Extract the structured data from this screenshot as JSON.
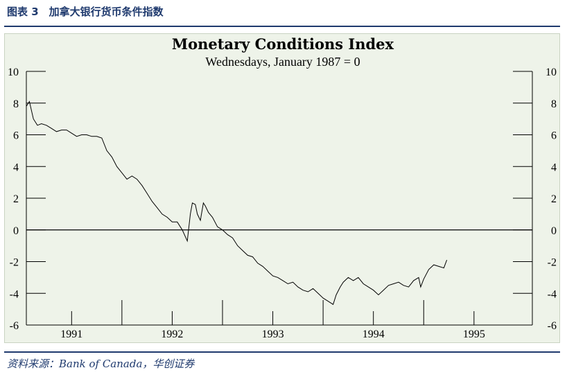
{
  "page": {
    "figure_title": "图表 3　加拿大银行货币条件指数",
    "source": "资料来源：Bank of Canada，华创证券"
  },
  "chart_data": {
    "type": "line",
    "title": "Monetary Conditions Index",
    "subtitle": "Wednesdays, January 1987 = 0",
    "xlim": [
      1990.55,
      1995.58
    ],
    "ylim": [
      -6,
      10
    ],
    "y_ticks": [
      -6,
      -4,
      -2,
      0,
      2,
      4,
      6,
      8,
      10
    ],
    "x_labels": [
      "1991",
      "1992",
      "1993",
      "1994",
      "1995"
    ],
    "x_label_positions": [
      1991,
      1992,
      1993,
      1994,
      1995
    ],
    "year_boundaries": [
      1991.5,
      1992.5,
      1993.5,
      1994.5
    ],
    "grid": false,
    "zero_line": true,
    "colors": {
      "line": "#000000",
      "panel": "#eef3e9",
      "accent": "#1f3a6e"
    },
    "series": [
      {
        "x": [
          1990.55,
          1990.58,
          1990.62,
          1990.66,
          1990.7,
          1990.75,
          1990.8,
          1990.85,
          1990.9,
          1990.95,
          1991.0,
          1991.05,
          1991.1,
          1991.15,
          1991.2,
          1991.25,
          1991.3,
          1991.35,
          1991.4,
          1991.45,
          1991.5,
          1991.55,
          1991.6,
          1991.65,
          1991.7,
          1991.75,
          1991.8,
          1991.85,
          1991.9,
          1991.95,
          1992.0,
          1992.05,
          1992.1,
          1992.15,
          1992.18,
          1992.2,
          1992.23,
          1992.25,
          1992.28,
          1992.31,
          1992.33,
          1992.36,
          1992.4,
          1992.45,
          1992.5,
          1992.55,
          1992.6,
          1992.65,
          1992.7,
          1992.75,
          1992.8,
          1992.85,
          1992.9,
          1992.95,
          1993.0,
          1993.05,
          1993.1,
          1993.15,
          1993.2,
          1993.25,
          1993.3,
          1993.35,
          1993.4,
          1993.45,
          1993.5,
          1993.55,
          1993.6,
          1993.63,
          1993.67,
          1993.7,
          1993.75,
          1993.8,
          1993.85,
          1993.9,
          1993.95,
          1994.0,
          1994.05,
          1994.1,
          1994.15,
          1994.2,
          1994.25,
          1994.3,
          1994.35,
          1994.4,
          1994.45,
          1994.47,
          1994.5,
          1994.55,
          1994.6,
          1994.65,
          1994.7,
          1994.73
        ],
        "y": [
          7.8,
          8.1,
          7.0,
          6.6,
          6.7,
          6.6,
          6.4,
          6.2,
          6.3,
          6.3,
          6.1,
          5.9,
          6.0,
          6.0,
          5.9,
          5.9,
          5.8,
          5.0,
          4.6,
          4.0,
          3.6,
          3.2,
          3.4,
          3.2,
          2.8,
          2.3,
          1.8,
          1.4,
          1.0,
          0.8,
          0.5,
          0.5,
          0.0,
          -0.7,
          1.0,
          1.7,
          1.6,
          1.0,
          0.6,
          1.7,
          1.5,
          1.1,
          0.8,
          0.2,
          0.0,
          -0.3,
          -0.5,
          -1.0,
          -1.3,
          -1.6,
          -1.7,
          -2.1,
          -2.3,
          -2.6,
          -2.9,
          -3.0,
          -3.2,
          -3.4,
          -3.3,
          -3.6,
          -3.8,
          -3.9,
          -3.7,
          -4.0,
          -4.3,
          -4.5,
          -4.7,
          -4.1,
          -3.6,
          -3.3,
          -3.0,
          -3.2,
          -3.0,
          -3.4,
          -3.6,
          -3.8,
          -4.1,
          -3.8,
          -3.5,
          -3.4,
          -3.3,
          -3.5,
          -3.6,
          -3.2,
          -3.0,
          -3.6,
          -3.1,
          -2.5,
          -2.2,
          -2.3,
          -2.4,
          -1.9
        ]
      }
    ]
  }
}
